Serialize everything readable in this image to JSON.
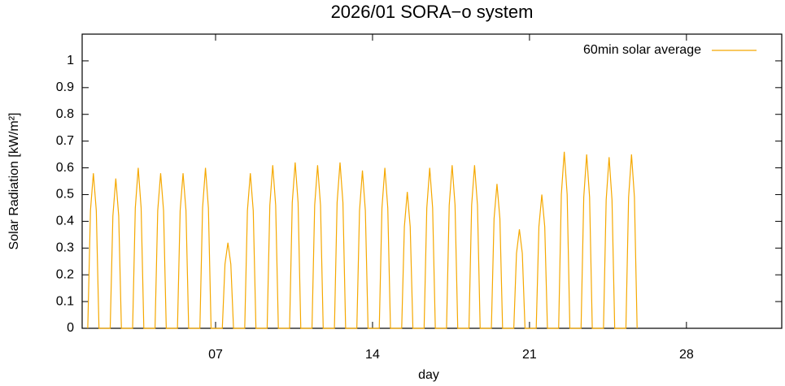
{
  "chart_data": {
    "type": "line",
    "title": "2026/01 SORA−o system",
    "xlabel": "day",
    "ylabel": "Solar Radiation [kW/m²]",
    "legend": "upper right",
    "xlim": [
      1.05,
      32.25
    ],
    "ylim": [
      0,
      1.1
    ],
    "xticks": [
      {
        "value": 7,
        "label": "07"
      },
      {
        "value": 14,
        "label": "14"
      },
      {
        "value": 21,
        "label": "21"
      },
      {
        "value": 28,
        "label": "28"
      }
    ],
    "yticks": [
      0,
      0.1,
      0.2,
      0.3,
      0.4,
      0.5,
      0.6,
      0.7,
      0.8,
      0.9,
      1
    ],
    "series": [
      {
        "name": "60min solar average",
        "color": "#f5a800",
        "x": [
          1.3,
          1.42,
          1.55,
          1.68,
          1.8,
          2.3,
          2.42,
          2.55,
          2.68,
          2.8,
          3.3,
          3.42,
          3.55,
          3.68,
          3.8,
          4.3,
          4.42,
          4.55,
          4.68,
          4.8,
          5.3,
          5.42,
          5.55,
          5.68,
          5.8,
          6.3,
          6.42,
          6.55,
          6.68,
          6.8,
          7.3,
          7.42,
          7.55,
          7.68,
          7.8,
          8.3,
          8.42,
          8.55,
          8.68,
          8.8,
          9.3,
          9.42,
          9.55,
          9.68,
          9.8,
          10.3,
          10.42,
          10.55,
          10.68,
          10.8,
          11.3,
          11.42,
          11.55,
          11.68,
          11.8,
          12.3,
          12.42,
          12.55,
          12.68,
          12.8,
          13.3,
          13.42,
          13.55,
          13.68,
          13.8,
          14.3,
          14.42,
          14.55,
          14.68,
          14.8,
          15.3,
          15.42,
          15.55,
          15.68,
          15.8,
          16.3,
          16.42,
          16.55,
          16.68,
          16.8,
          17.3,
          17.42,
          17.55,
          17.68,
          17.8,
          18.3,
          18.42,
          18.55,
          18.68,
          18.8,
          19.3,
          19.42,
          19.55,
          19.68,
          19.8,
          20.3,
          20.42,
          20.55,
          20.68,
          20.8,
          21.3,
          21.42,
          21.55,
          21.68,
          21.8,
          22.3,
          22.42,
          22.55,
          22.68,
          22.8,
          23.3,
          23.42,
          23.55,
          23.68,
          23.8,
          24.3,
          24.42,
          24.55,
          24.68,
          24.8,
          25.3,
          25.42,
          25.55,
          25.68,
          25.8
        ],
        "values": [
          0,
          0.44,
          0.58,
          0.44,
          0,
          0,
          0.42,
          0.56,
          0.42,
          0,
          0,
          0.45,
          0.6,
          0.45,
          0,
          0,
          0.44,
          0.58,
          0.44,
          0,
          0,
          0.44,
          0.58,
          0.44,
          0,
          0,
          0.45,
          0.6,
          0.45,
          0,
          0,
          0.24,
          0.32,
          0.24,
          0,
          0,
          0.44,
          0.58,
          0.44,
          0,
          0,
          0.46,
          0.61,
          0.46,
          0,
          0,
          0.47,
          0.62,
          0.47,
          0,
          0,
          0.46,
          0.61,
          0.46,
          0,
          0,
          0.47,
          0.62,
          0.47,
          0,
          0,
          0.44,
          0.59,
          0.44,
          0,
          0,
          0.45,
          0.6,
          0.45,
          0,
          0,
          0.38,
          0.51,
          0.38,
          0,
          0,
          0.45,
          0.6,
          0.45,
          0,
          0,
          0.46,
          0.61,
          0.46,
          0,
          0,
          0.46,
          0.61,
          0.46,
          0,
          0,
          0.41,
          0.54,
          0.41,
          0,
          0,
          0.28,
          0.37,
          0.28,
          0,
          0,
          0.38,
          0.5,
          0.38,
          0,
          0,
          0.5,
          0.66,
          0.5,
          0,
          0,
          0.49,
          0.65,
          0.49,
          0,
          0,
          0.48,
          0.64,
          0.48,
          0,
          0,
          0.49,
          0.65,
          0.49,
          0
        ]
      }
    ]
  }
}
